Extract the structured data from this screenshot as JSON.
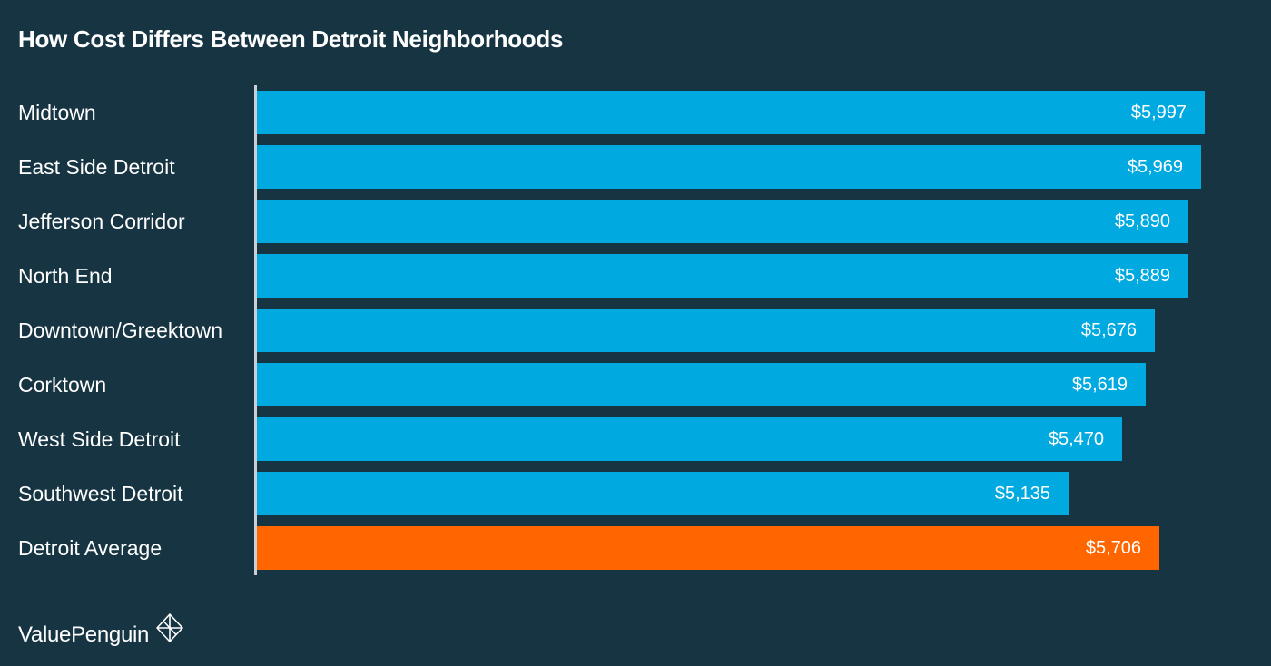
{
  "chart_data": {
    "type": "bar",
    "orientation": "horizontal",
    "title": "How Cost Differs Between Detroit Neighborhoods",
    "categories": [
      "Midtown",
      "East Side Detroit",
      "Jefferson Corridor",
      "North End",
      "Downtown/Greektown",
      "Corktown",
      "West Side Detroit",
      "Southwest Detroit",
      "Detroit Average"
    ],
    "values": [
      5997,
      5969,
      5890,
      5889,
      5676,
      5619,
      5470,
      5135,
      5706
    ],
    "value_labels": [
      "$5,997",
      "$5,969",
      "$5,890",
      "$5,889",
      "$5,676",
      "$5,619",
      "$5,470",
      "$5,135",
      "$5,706"
    ],
    "xlim": [
      0,
      6000
    ],
    "grid": false,
    "legend": "none",
    "highlight_index": 8
  },
  "colors": {
    "background": "#163442",
    "bar": "#00a9e0",
    "highlight_bar": "#ff6600",
    "text": "#ffffff",
    "axis": "#c8d0d4"
  },
  "footer": {
    "brand": "ValuePenguin",
    "logo_icon": "valuepenguin-logo-icon"
  }
}
